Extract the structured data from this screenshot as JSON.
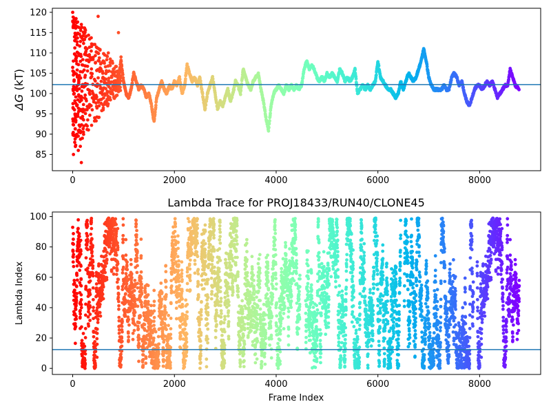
{
  "colors": {
    "refline": "#1f77b4",
    "colormap": "rainbow"
  },
  "chart_data": [
    {
      "type": "scatter",
      "title": "",
      "xlabel": "",
      "ylabel_symbol": "ΔG",
      "ylabel_unit": " (kT)",
      "xlim": [
        -400,
        9200
      ],
      "ylim": [
        81,
        121
      ],
      "xticks": [
        0,
        2000,
        4000,
        6000,
        8000
      ],
      "yticks": [
        85,
        90,
        95,
        100,
        105,
        110,
        115,
        120
      ],
      "hline": 102.2,
      "color_by": "frame index (rainbow, red at frame 0 to violet at last frame)",
      "x_max": 8780,
      "trace_points": [
        [
          0,
          120
        ],
        [
          20,
          110
        ],
        [
          40,
          100
        ],
        [
          60,
          98
        ],
        [
          80,
          104
        ],
        [
          100,
          106
        ],
        [
          120,
          103
        ],
        [
          150,
          100
        ],
        [
          180,
          98
        ],
        [
          200,
          104
        ],
        [
          250,
          102
        ],
        [
          300,
          106
        ],
        [
          350,
          104
        ],
        [
          400,
          107
        ],
        [
          450,
          103
        ],
        [
          500,
          109
        ],
        [
          550,
          106
        ],
        [
          600,
          104
        ],
        [
          650,
          99
        ],
        [
          700,
          102
        ],
        [
          750,
          105
        ],
        [
          800,
          103
        ],
        [
          850,
          101
        ],
        [
          900,
          104
        ],
        [
          950,
          108
        ],
        [
          1000,
          103
        ],
        [
          1050,
          100
        ],
        [
          1100,
          99
        ],
        [
          1150,
          101
        ],
        [
          1200,
          105
        ],
        [
          1250,
          103
        ],
        [
          1300,
          101
        ],
        [
          1350,
          102
        ],
        [
          1400,
          101
        ],
        [
          1450,
          99
        ],
        [
          1500,
          100
        ],
        [
          1550,
          97
        ],
        [
          1600,
          93
        ],
        [
          1650,
          99
        ],
        [
          1700,
          101
        ],
        [
          1750,
          103
        ],
        [
          1800,
          101
        ],
        [
          1850,
          100
        ],
        [
          1900,
          102
        ],
        [
          1950,
          101
        ],
        [
          2000,
          103
        ],
        [
          2050,
          102
        ],
        [
          2100,
          104
        ],
        [
          2150,
          100
        ],
        [
          2200,
          102
        ],
        [
          2250,
          107
        ],
        [
          2300,
          105
        ],
        [
          2350,
          103
        ],
        [
          2400,
          104
        ],
        [
          2450,
          102
        ],
        [
          2500,
          104
        ],
        [
          2550,
          100
        ],
        [
          2600,
          96
        ],
        [
          2650,
          100
        ],
        [
          2700,
          102
        ],
        [
          2750,
          104
        ],
        [
          2800,
          100
        ],
        [
          2850,
          96
        ],
        [
          2900,
          98
        ],
        [
          2950,
          97
        ],
        [
          3000,
          99
        ],
        [
          3050,
          101
        ],
        [
          3100,
          98
        ],
        [
          3150,
          100
        ],
        [
          3200,
          103
        ],
        [
          3250,
          102
        ],
        [
          3300,
          100
        ],
        [
          3350,
          106
        ],
        [
          3400,
          104
        ],
        [
          3450,
          102
        ],
        [
          3500,
          101
        ],
        [
          3550,
          103
        ],
        [
          3600,
          104
        ],
        [
          3650,
          105
        ],
        [
          3700,
          101
        ],
        [
          3750,
          98
        ],
        [
          3800,
          94
        ],
        [
          3850,
          91
        ],
        [
          3900,
          97
        ],
        [
          3950,
          100
        ],
        [
          4000,
          101
        ],
        [
          4050,
          102
        ],
        [
          4100,
          101
        ],
        [
          4150,
          100
        ],
        [
          4200,
          102
        ],
        [
          4250,
          101
        ],
        [
          4300,
          102
        ],
        [
          4350,
          101
        ],
        [
          4400,
          102
        ],
        [
          4450,
          101
        ],
        [
          4500,
          102
        ],
        [
          4550,
          106
        ],
        [
          4600,
          108
        ],
        [
          4650,
          106
        ],
        [
          4700,
          107
        ],
        [
          4750,
          106
        ],
        [
          4800,
          104
        ],
        [
          4850,
          103
        ],
        [
          4900,
          104
        ],
        [
          4950,
          103
        ],
        [
          5000,
          105
        ],
        [
          5050,
          104
        ],
        [
          5100,
          105
        ],
        [
          5150,
          104
        ],
        [
          5200,
          103
        ],
        [
          5250,
          106
        ],
        [
          5300,
          105
        ],
        [
          5350,
          103
        ],
        [
          5400,
          104
        ],
        [
          5450,
          103
        ],
        [
          5500,
          104
        ],
        [
          5550,
          106
        ],
        [
          5600,
          100
        ],
        [
          5650,
          101
        ],
        [
          5700,
          102
        ],
        [
          5750,
          101
        ],
        [
          5800,
          102
        ],
        [
          5850,
          101
        ],
        [
          5900,
          102
        ],
        [
          5950,
          103
        ],
        [
          6000,
          108
        ],
        [
          6050,
          104
        ],
        [
          6100,
          103
        ],
        [
          6150,
          102
        ],
        [
          6200,
          101
        ],
        [
          6250,
          101
        ],
        [
          6300,
          100
        ],
        [
          6350,
          99
        ],
        [
          6400,
          100
        ],
        [
          6450,
          103
        ],
        [
          6500,
          101
        ],
        [
          6550,
          103
        ],
        [
          6600,
          105
        ],
        [
          6650,
          104
        ],
        [
          6700,
          103
        ],
        [
          6750,
          104
        ],
        [
          6800,
          106
        ],
        [
          6850,
          108
        ],
        [
          6900,
          111
        ],
        [
          6950,
          108
        ],
        [
          7000,
          104
        ],
        [
          7050,
          102
        ],
        [
          7100,
          101
        ],
        [
          7150,
          101
        ],
        [
          7200,
          101
        ],
        [
          7250,
          101
        ],
        [
          7300,
          102
        ],
        [
          7350,
          101
        ],
        [
          7400,
          101
        ],
        [
          7450,
          104
        ],
        [
          7500,
          105
        ],
        [
          7550,
          104
        ],
        [
          7600,
          102
        ],
        [
          7650,
          103
        ],
        [
          7700,
          100
        ],
        [
          7750,
          98
        ],
        [
          7800,
          97
        ],
        [
          7850,
          99
        ],
        [
          7900,
          101
        ],
        [
          7950,
          102
        ],
        [
          8000,
          102
        ],
        [
          8050,
          101
        ],
        [
          8100,
          102
        ],
        [
          8150,
          103
        ],
        [
          8200,
          102
        ],
        [
          8250,
          103
        ],
        [
          8300,
          101
        ],
        [
          8350,
          99
        ],
        [
          8400,
          100
        ],
        [
          8450,
          101
        ],
        [
          8500,
          102
        ],
        [
          8550,
          102
        ],
        [
          8600,
          106
        ],
        [
          8650,
          104
        ],
        [
          8700,
          102
        ],
        [
          8780,
          101
        ]
      ],
      "early_scatter_points": [
        [
          0,
          120
        ],
        [
          10,
          90
        ],
        [
          15,
          85
        ],
        [
          20,
          117
        ],
        [
          25,
          105
        ],
        [
          30,
          100
        ],
        [
          35,
          96
        ],
        [
          40,
          88
        ],
        [
          45,
          113
        ],
        [
          50,
          101
        ],
        [
          60,
          93
        ],
        [
          70,
          108
        ],
        [
          80,
          97
        ],
        [
          90,
          112
        ],
        [
          100,
          95
        ],
        [
          110,
          86
        ],
        [
          120,
          103
        ],
        [
          130,
          91
        ],
        [
          140,
          98
        ],
        [
          150,
          87
        ],
        [
          160,
          94
        ],
        [
          170,
          83
        ],
        [
          180,
          99
        ],
        [
          190,
          89
        ],
        [
          200,
          107
        ],
        [
          220,
          92
        ],
        [
          240,
          104
        ],
        [
          260,
          96
        ],
        [
          280,
          111
        ],
        [
          300,
          101
        ],
        [
          330,
          97
        ],
        [
          360,
          105
        ],
        [
          400,
          100
        ],
        [
          450,
          102
        ],
        [
          500,
          119
        ],
        [
          520,
          108
        ],
        [
          560,
          103
        ],
        [
          600,
          96
        ],
        [
          650,
          105
        ],
        [
          700,
          110
        ],
        [
          750,
          100
        ],
        [
          800,
          106
        ],
        [
          900,
          115
        ],
        [
          950,
          109
        ]
      ]
    },
    {
      "type": "scatter",
      "title": "Lambda Trace for PROJ18433/RUN40/CLONE45",
      "xlabel": "Frame Index",
      "ylabel": "Lambda Index",
      "xlim": [
        -400,
        9200
      ],
      "ylim": [
        -4,
        103
      ],
      "xticks": [
        0,
        2000,
        4000,
        6000,
        8000
      ],
      "yticks": [
        0,
        20,
        40,
        60,
        80,
        100
      ],
      "hline": 12.4,
      "color_by": "frame index (rainbow, red at frame 0 to violet at last frame)",
      "x_max": 8780,
      "lambda_min": 0,
      "lambda_max": 99,
      "dense_gaps": [
        [
          4470,
          4580
        ],
        [
          6450,
          6520
        ],
        [
          7880,
          7950
        ]
      ]
    }
  ]
}
